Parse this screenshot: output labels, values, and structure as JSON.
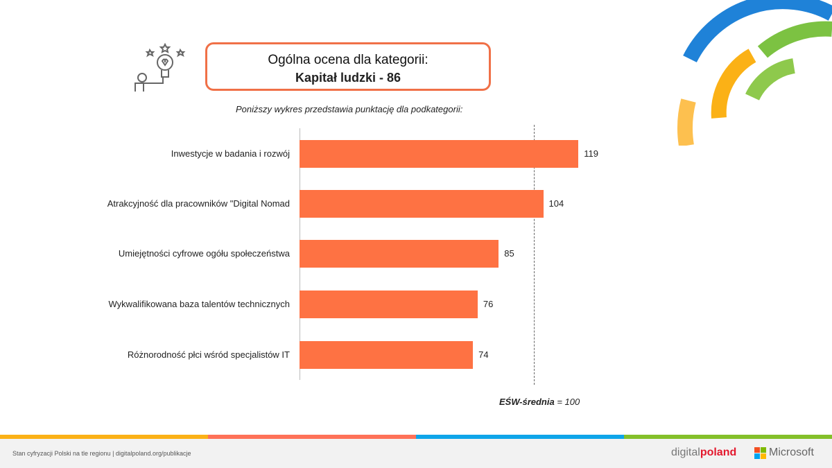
{
  "header": {
    "title_line1": "Ogólna ocena dla kategorii:",
    "title_line2": "Kapitał ludzki - 86",
    "subtitle": "Poniższy wykres przedstawia punktację dla podkategorii:"
  },
  "chart_data": {
    "type": "bar",
    "orientation": "horizontal",
    "categories": [
      "Inwestycje w badania i rozwój",
      "Atrakcyjność dla pracowników \"Digital Nomad",
      "Umiejętności cyfrowe ogółu społeczeństwa",
      "Wykwalifikowana baza talentów technicznych",
      "Różnorodność płci wśród specjalistów IT"
    ],
    "values": [
      119,
      104,
      85,
      76,
      74
    ],
    "reference_line": 100,
    "reference_label_bold": "EŚW-średnia",
    "reference_label_rest": " = 100",
    "bar_color": "#fe7243"
  },
  "footer": {
    "text": "Stan cyfryzacji Polski na tle regionu | digitalpoland.org/publikacje",
    "logo1_a": "digital",
    "logo1_b": "poland",
    "logo2": "Microsoft"
  },
  "colors": {
    "stripes": [
      "#fbb116",
      "#fe7158",
      "#0ea5e9",
      "#84c02a"
    ]
  }
}
